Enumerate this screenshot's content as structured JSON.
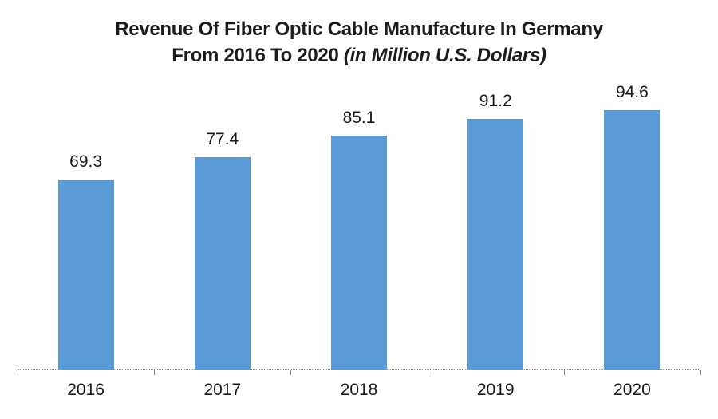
{
  "title": {
    "line1": "Revenue Of Fiber Optic Cable Manufacture In Germany",
    "line2_regular": "From 2016 To 2020 ",
    "line2_italic": "(in Million U.S. Dollars)"
  },
  "chart_data": {
    "type": "bar",
    "title": "Revenue Of Fiber Optic Cable Manufacture In Germany From 2016 To 2020 (in Million U.S. Dollars)",
    "categories": [
      "2016",
      "2017",
      "2018",
      "2019",
      "2020"
    ],
    "values": [
      69.3,
      77.4,
      85.1,
      91.2,
      94.6
    ],
    "data_labels": [
      "69.3",
      "77.4",
      "85.1",
      "91.2",
      "94.6"
    ],
    "xlabel": "",
    "ylabel": "",
    "ylim": [
      0,
      100
    ],
    "grid": false,
    "legend": false,
    "colors": {
      "bar": "#5B9BD5",
      "axis": "#8c8c8c",
      "tick": "#898989",
      "label": "#1a1a1a",
      "title": "#1c1c1c",
      "background": "#ffffff"
    }
  }
}
